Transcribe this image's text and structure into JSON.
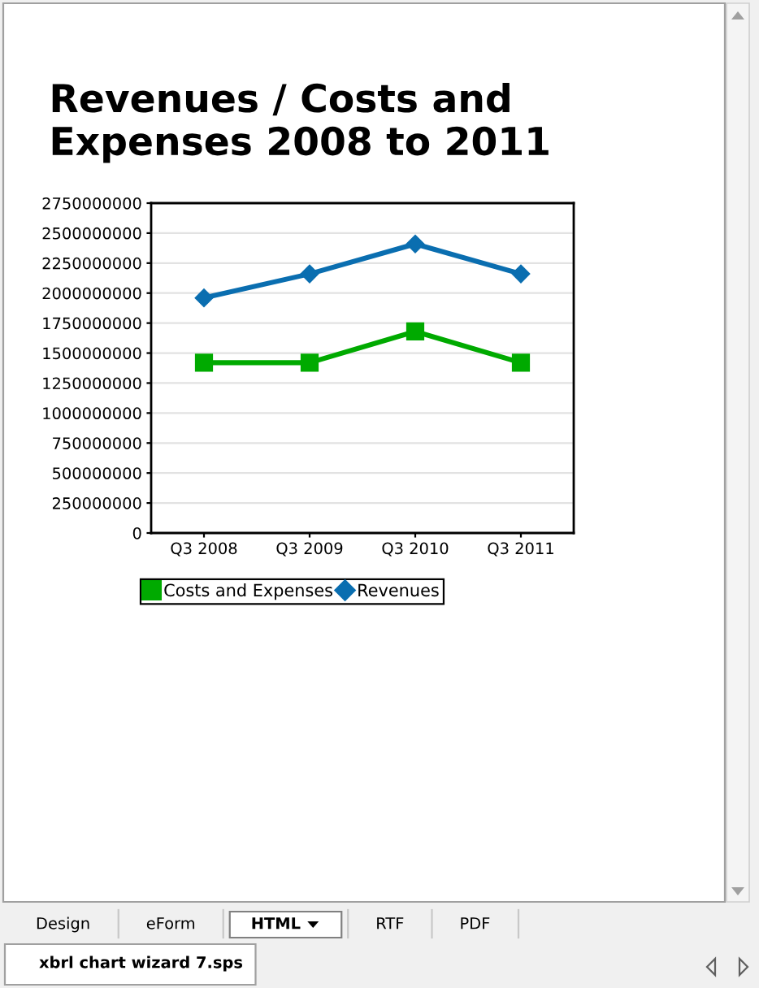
{
  "chart_data": {
    "type": "line",
    "title": "Revenues / Costs and Expenses 2008 to 2011",
    "categories": [
      "Q3 2008",
      "Q3 2009",
      "Q3 2010",
      "Q3 2011"
    ],
    "series": [
      {
        "name": "Costs and Expenses",
        "color": "#00aa00",
        "marker": "square",
        "values": [
          1420000000,
          1420000000,
          1680000000,
          1420000000
        ]
      },
      {
        "name": "Revenues",
        "color": "#0a6eb0",
        "marker": "diamond",
        "values": [
          1960000000,
          2160000000,
          2410000000,
          2160000000
        ]
      }
    ],
    "ylim": [
      0,
      2750000000
    ],
    "yticks": [
      0,
      250000000,
      500000000,
      750000000,
      1000000000,
      1250000000,
      1500000000,
      1750000000,
      2000000000,
      2250000000,
      2500000000,
      2750000000
    ],
    "grid": "y",
    "legend": "bottom",
    "line_style": "solid",
    "annotations": [
      "Design",
      "eForm",
      "HTML",
      "RTF",
      "PDF",
      "xbrl chart wizard 7.sps"
    ]
  }
}
